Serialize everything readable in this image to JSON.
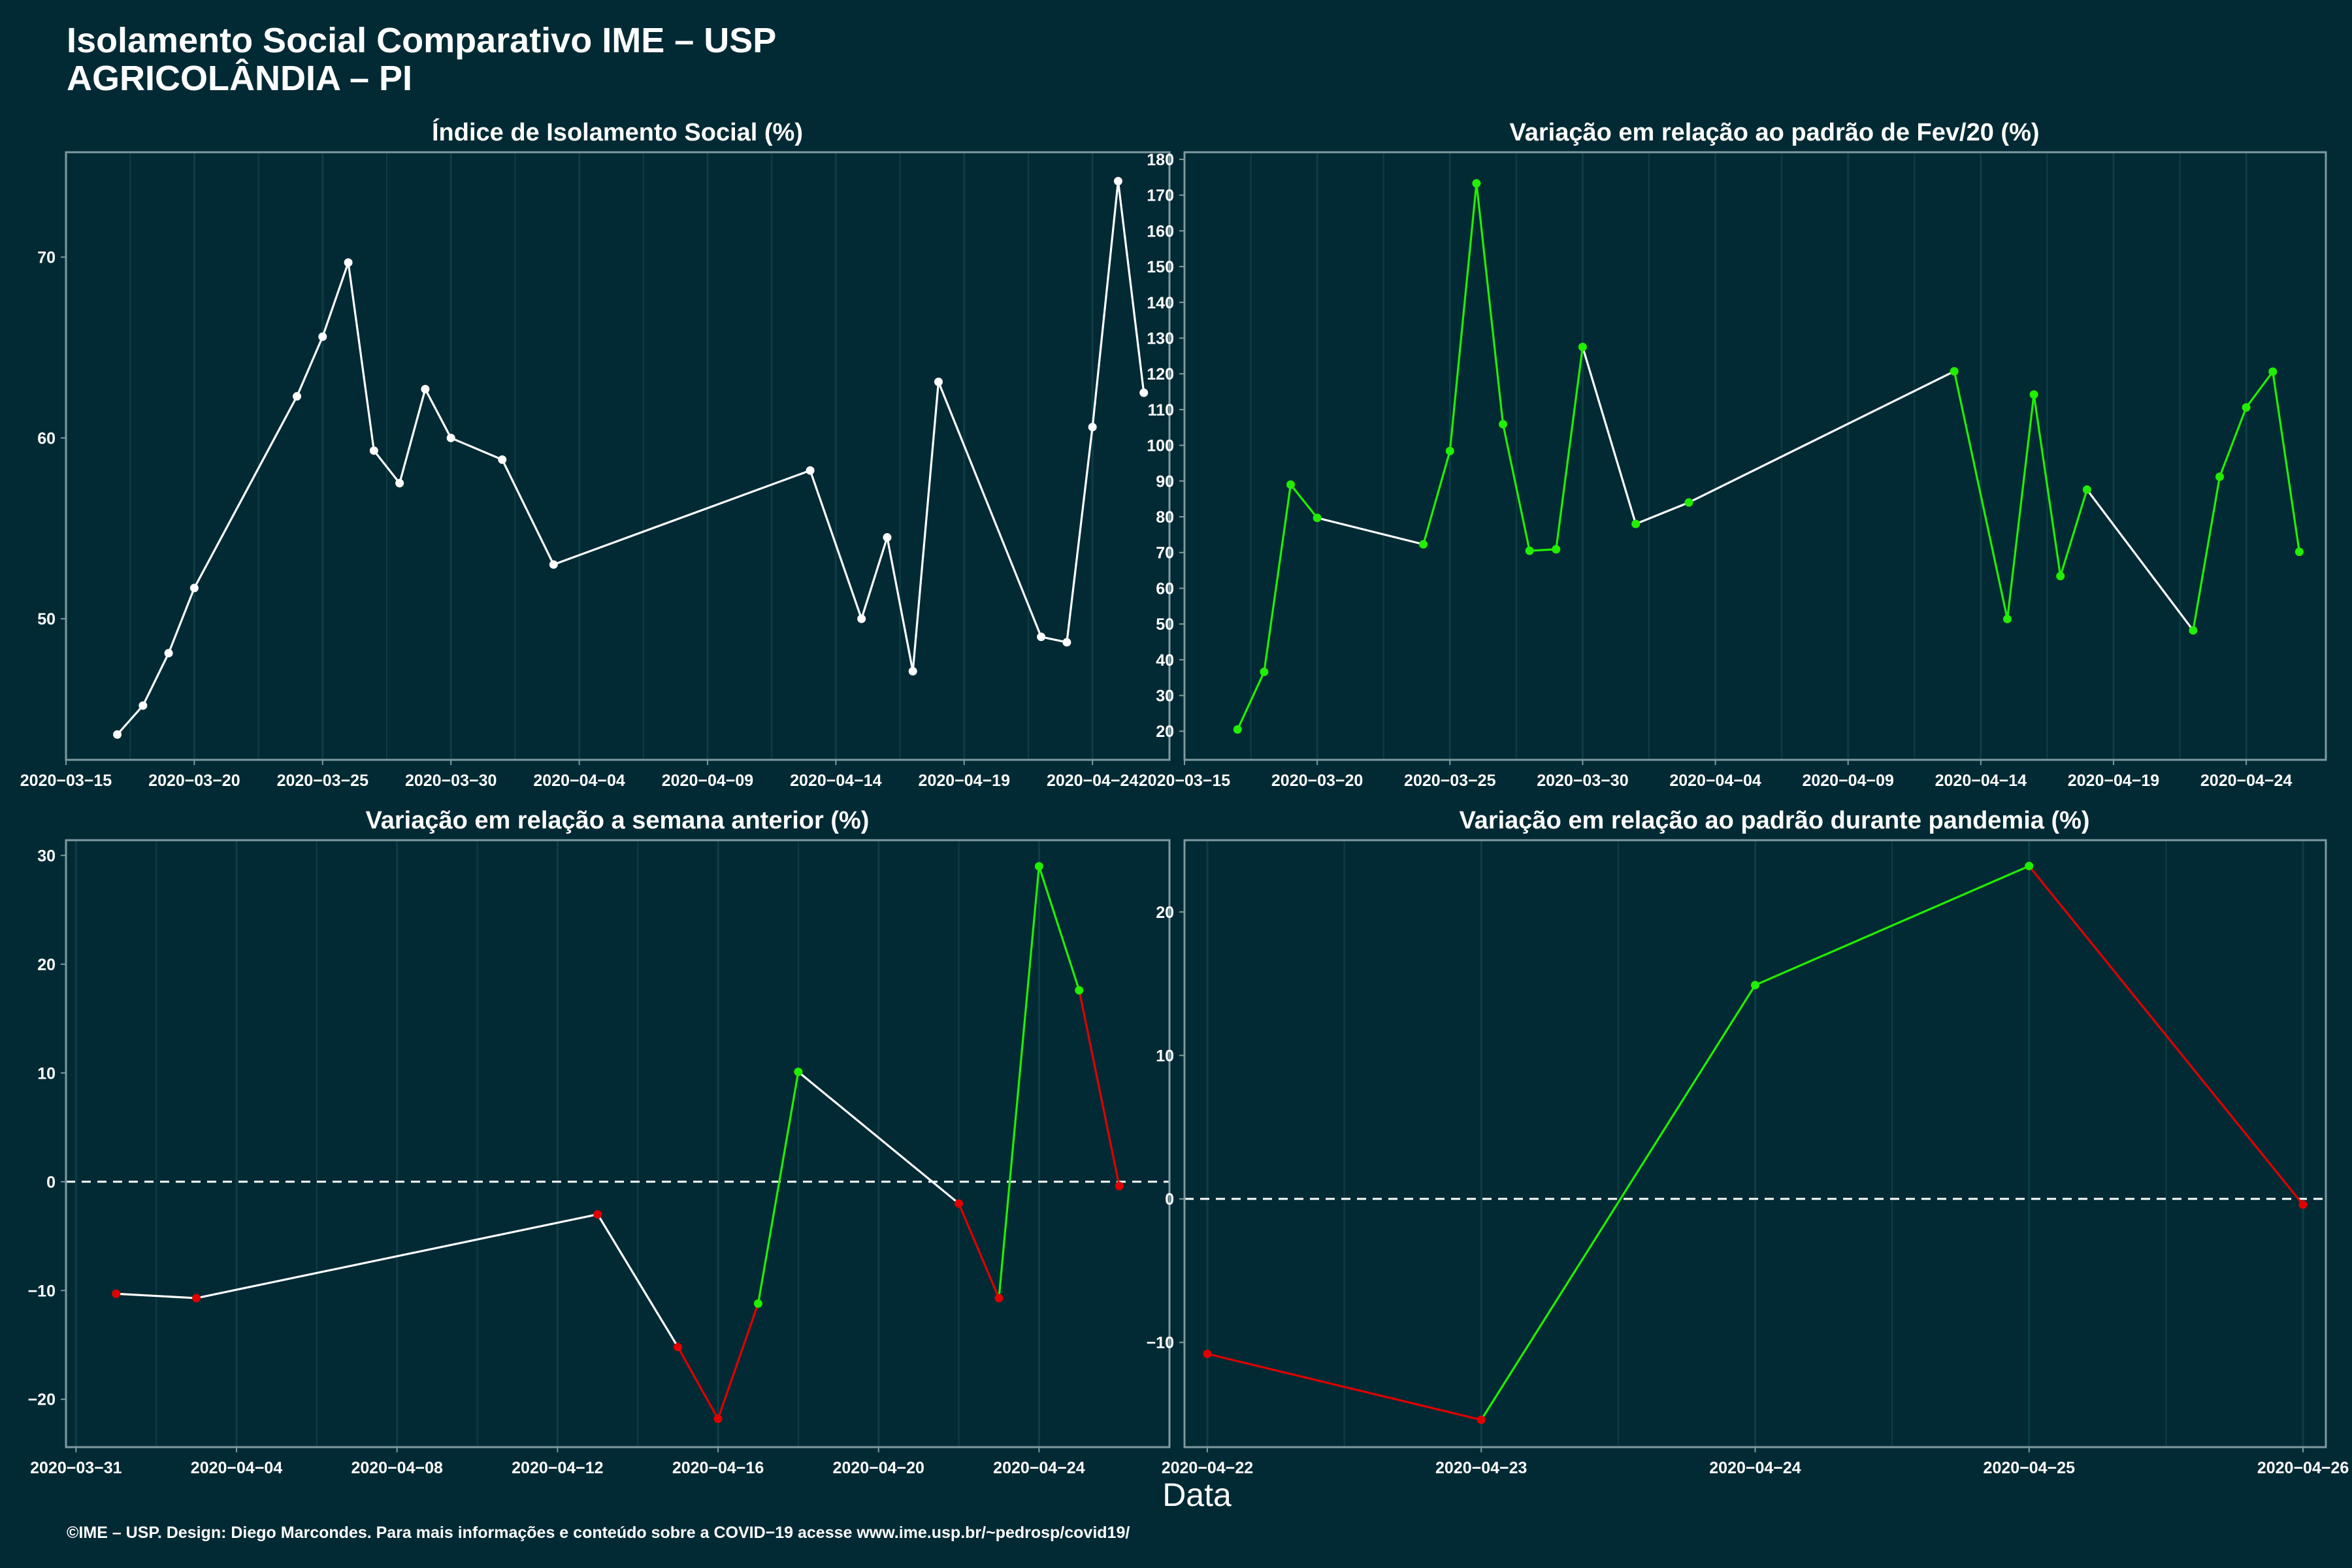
{
  "header": {
    "title_line1": "Isolamento Social Comparativo IME – USP",
    "title_line2": "AGRICOLÂNDIA – PI"
  },
  "x_axis_label": "Data",
  "caption": "©IME – USP. Design: Diego Marcondes. Para mais informações e conteúdo sobre a COVID−19 acesse www.ime.usp.br/~pedrosp/covid19/",
  "colors": {
    "background": "#022a34",
    "axis": "#7f9aa0",
    "grid": "#0e3d46",
    "line_white": "#ffffff",
    "increase_green": "#22ee00",
    "decrease_red": "#e00000",
    "neutral_white": "#ffffff"
  },
  "chart_data": [
    {
      "id": "indice",
      "type": "line",
      "title": "Índice de Isolamento Social (%)",
      "xlabel": "Data",
      "ylabel": "",
      "x_type": "date",
      "xlim": [
        "2020-03-15",
        "2020-04-27"
      ],
      "x_ticks": [
        "2020-03-15",
        "2020-03-20",
        "2020-03-25",
        "2020-03-30",
        "2020-04-04",
        "2020-04-09",
        "2020-04-14",
        "2020-04-19",
        "2020-04-24"
      ],
      "x_tick_labels": [
        "2020−03−15",
        "2020−03−20",
        "2020−03−25",
        "2020−03−30",
        "2020−04−04",
        "2020−04−09",
        "2020−04−14",
        "2020−04−19",
        "2020−04−24"
      ],
      "ylim": [
        42.2,
        75.8
      ],
      "y_ticks": [
        50,
        60,
        70
      ],
      "y_tick_labels": [
        "50",
        "60",
        "70"
      ],
      "grid": true,
      "series": [
        {
          "points": [
            {
              "x": "2020-03-17",
              "y": 43.6
            },
            {
              "x": "2020-03-18",
              "y": 45.2
            },
            {
              "x": "2020-03-19",
              "y": 48.1
            },
            {
              "x": "2020-03-20",
              "y": 51.7
            },
            {
              "x": "2020-03-24",
              "y": 62.3
            },
            {
              "x": "2020-03-25",
              "y": 65.6
            },
            {
              "x": "2020-03-26",
              "y": 69.7
            },
            {
              "x": "2020-03-27",
              "y": 59.3
            },
            {
              "x": "2020-03-28",
              "y": 57.5
            },
            {
              "x": "2020-03-29",
              "y": 62.7
            },
            {
              "x": "2020-03-30",
              "y": 60.0
            },
            {
              "x": "2020-04-01",
              "y": 58.8
            },
            {
              "x": "2020-04-03",
              "y": 53.0
            },
            {
              "x": "2020-04-13",
              "y": 58.2
            },
            {
              "x": "2020-04-15",
              "y": 50.0
            },
            {
              "x": "2020-04-16",
              "y": 54.5
            },
            {
              "x": "2020-04-17",
              "y": 47.1
            },
            {
              "x": "2020-04-18",
              "y": 63.1
            },
            {
              "x": "2020-04-22",
              "y": 49.0
            },
            {
              "x": "2020-04-23",
              "y": 48.7
            },
            {
              "x": "2020-04-24",
              "y": 60.6
            },
            {
              "x": "2020-04-25",
              "y": 74.2
            },
            {
              "x": "2020-04-26",
              "y": 62.5
            }
          ]
        }
      ]
    },
    {
      "id": "fev",
      "type": "line",
      "title": "Variação em relação ao padrão de Fev/20 (%)",
      "xlabel": "Data",
      "ylabel": "",
      "x_type": "date",
      "xlim": [
        "2020-03-15",
        "2020-04-27"
      ],
      "x_ticks": [
        "2020-03-15",
        "2020-03-20",
        "2020-03-25",
        "2020-03-30",
        "2020-04-04",
        "2020-04-09",
        "2020-04-14",
        "2020-04-19",
        "2020-04-24"
      ],
      "x_tick_labels": [
        "2020−03−15",
        "2020−03−20",
        "2020−03−25",
        "2020−03−30",
        "2020−04−04",
        "2020−04−09",
        "2020−04−14",
        "2020−04−19",
        "2020−04−24"
      ],
      "ylim": [
        12,
        182
      ],
      "y_ticks": [
        20,
        30,
        40,
        50,
        60,
        70,
        80,
        90,
        100,
        110,
        120,
        130,
        140,
        150,
        160,
        170,
        180
      ],
      "y_tick_labels": [
        "20",
        "30",
        "40",
        "50",
        "60",
        "70",
        "80",
        "90",
        "100",
        "110",
        "120",
        "130",
        "140",
        "150",
        "160",
        "170",
        "180"
      ],
      "grid": true,
      "series": [
        {
          "points": [
            {
              "x": "2020-03-17",
              "y": 20.5
            },
            {
              "x": "2020-03-18",
              "y": 36.6
            },
            {
              "x": "2020-03-19",
              "y": 89.0
            },
            {
              "x": "2020-03-20",
              "y": 79.7
            },
            {
              "x": "2020-03-24",
              "y": 72.3
            },
            {
              "x": "2020-03-25",
              "y": 98.4
            },
            {
              "x": "2020-03-26",
              "y": 173.3
            },
            {
              "x": "2020-03-27",
              "y": 105.9
            },
            {
              "x": "2020-03-28",
              "y": 70.5
            },
            {
              "x": "2020-03-29",
              "y": 70.9
            },
            {
              "x": "2020-03-30",
              "y": 127.5
            },
            {
              "x": "2020-04-01",
              "y": 78.0
            },
            {
              "x": "2020-04-03",
              "y": 84.0
            },
            {
              "x": "2020-04-13",
              "y": 120.7
            },
            {
              "x": "2020-04-15",
              "y": 51.4
            },
            {
              "x": "2020-04-16",
              "y": 114.2
            },
            {
              "x": "2020-04-17",
              "y": 63.4
            },
            {
              "x": "2020-04-18",
              "y": 87.6
            },
            {
              "x": "2020-04-22",
              "y": 48.2
            },
            {
              "x": "2020-04-23",
              "y": 91.2
            },
            {
              "x": "2020-04-24",
              "y": 110.6
            },
            {
              "x": "2020-04-25",
              "y": 120.6
            },
            {
              "x": "2020-04-26",
              "y": 70.2
            }
          ]
        }
      ],
      "point_color": "green",
      "segment_colors": [
        "green",
        "green",
        "green",
        "white",
        "green",
        "green",
        "green",
        "green",
        "green",
        "green",
        "white",
        "white",
        "white",
        "green",
        "green",
        "green",
        "green",
        "white",
        "green",
        "green",
        "green",
        "green"
      ]
    },
    {
      "id": "semana",
      "type": "line",
      "title": "Variação em relação a semana anterior (%)",
      "xlabel": "Data",
      "ylabel": "",
      "x_type": "date",
      "xlim": [
        "2020-03-30T18:00",
        "2020-04-27T06:00"
      ],
      "x_ticks": [
        "2020-03-31",
        "2020-04-04",
        "2020-04-08",
        "2020-04-12",
        "2020-04-16",
        "2020-04-20",
        "2020-04-24"
      ],
      "x_tick_labels": [
        "2020−03−31",
        "2020−04−04",
        "2020−04−08",
        "2020−04−12",
        "2020−04−16",
        "2020−04−20",
        "2020−04−24"
      ],
      "ylim": [
        -24.4,
        31.4
      ],
      "y_ticks": [
        -20,
        -10,
        0,
        10,
        20,
        30
      ],
      "y_tick_labels": [
        "−20",
        "−10",
        "0",
        "10",
        "20",
        "30"
      ],
      "grid": true,
      "reference_line": 0,
      "series": [
        {
          "points": [
            {
              "x": "2020-04-01",
              "y": -10.3,
              "c": "red"
            },
            {
              "x": "2020-04-03",
              "y": -10.7,
              "c": "red"
            },
            {
              "x": "2020-04-13",
              "y": -3.0,
              "c": "red"
            },
            {
              "x": "2020-04-15",
              "y": -15.2,
              "c": "red"
            },
            {
              "x": "2020-04-16",
              "y": -21.8,
              "c": "red"
            },
            {
              "x": "2020-04-17",
              "y": -11.2,
              "c": "green"
            },
            {
              "x": "2020-04-18",
              "y": 10.1,
              "c": "green"
            },
            {
              "x": "2020-04-22",
              "y": -2.0,
              "c": "red"
            },
            {
              "x": "2020-04-23",
              "y": -10.7,
              "c": "red"
            },
            {
              "x": "2020-04-24",
              "y": 29.0,
              "c": "green"
            },
            {
              "x": "2020-04-25",
              "y": 17.6,
              "c": "green"
            },
            {
              "x": "2020-04-26",
              "y": -0.4,
              "c": "red"
            }
          ]
        }
      ],
      "segment_colors": [
        "white",
        "white",
        "white",
        "red",
        "red",
        "green",
        "white",
        "red",
        "green",
        "green",
        "red"
      ]
    },
    {
      "id": "pandemia",
      "type": "line",
      "title": "Variação em relação ao padrão durante pandemia (%)",
      "xlabel": "Data",
      "ylabel": "",
      "x_type": "date",
      "xlim": [
        "2020-04-21T22:00",
        "2020-04-26T02:00"
      ],
      "x_ticks": [
        "2020-04-22",
        "2020-04-23",
        "2020-04-24",
        "2020-04-25",
        "2020-04-26"
      ],
      "x_tick_labels": [
        "2020−04−22",
        "2020−04−23",
        "2020−04−24",
        "2020−04−25",
        "2020−04−26"
      ],
      "ylim": [
        -17.3,
        25.0
      ],
      "y_ticks": [
        -10,
        0,
        10,
        20
      ],
      "y_tick_labels": [
        "−10",
        "0",
        "10",
        "20"
      ],
      "grid": true,
      "reference_line": 0,
      "series": [
        {
          "points": [
            {
              "x": "2020-04-22",
              "y": -10.8,
              "c": "red"
            },
            {
              "x": "2020-04-23",
              "y": -15.4,
              "c": "red"
            },
            {
              "x": "2020-04-24",
              "y": 14.9,
              "c": "green"
            },
            {
              "x": "2020-04-25",
              "y": 23.2,
              "c": "green"
            },
            {
              "x": "2020-04-26",
              "y": -0.4,
              "c": "red"
            }
          ]
        }
      ],
      "segment_colors": [
        "red",
        "green",
        "green",
        "red"
      ]
    }
  ]
}
